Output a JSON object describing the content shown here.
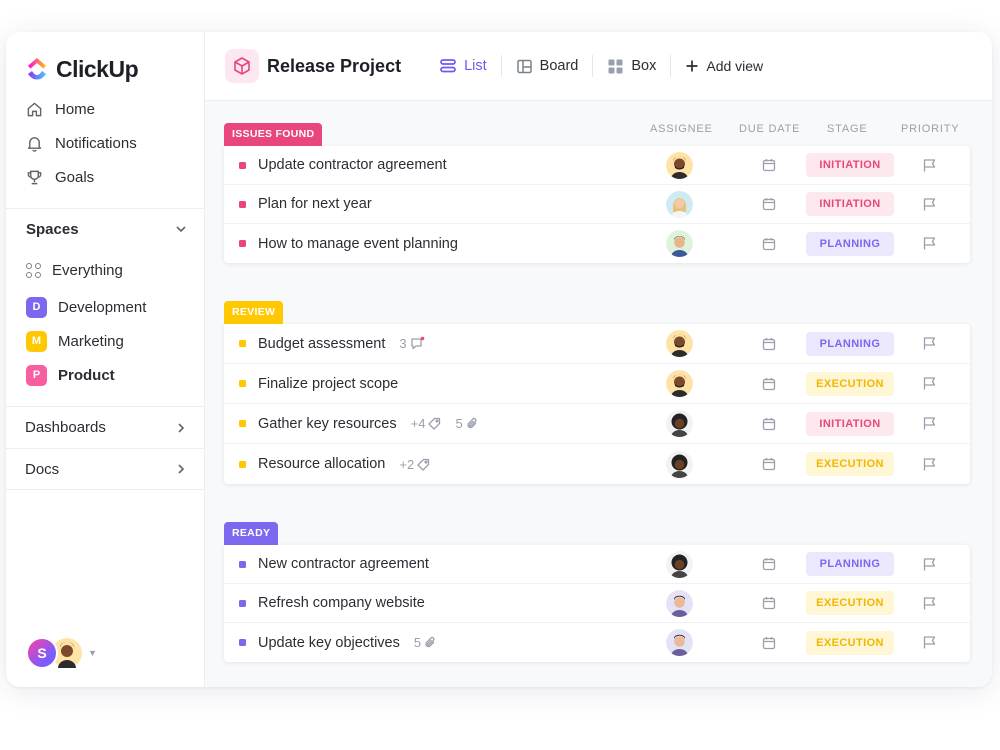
{
  "app": {
    "brand": "ClickUp"
  },
  "sidebar": {
    "nav": [
      {
        "label": "Home",
        "icon": "home-icon"
      },
      {
        "label": "Notifications",
        "icon": "bell-icon"
      },
      {
        "label": "Goals",
        "icon": "trophy-icon"
      }
    ],
    "spaces_label": "Spaces",
    "everything_label": "Everything",
    "spaces": [
      {
        "letter": "D",
        "label": "Development",
        "color": "#7b68ee"
      },
      {
        "letter": "M",
        "label": "Marketing",
        "color": "#ffc800"
      },
      {
        "letter": "P",
        "label": "Product",
        "color": "#f95ea0"
      }
    ],
    "dashboards_label": "Dashboards",
    "docs_label": "Docs",
    "user_initial": "S"
  },
  "header": {
    "project_title": "Release Project",
    "views": [
      {
        "label": "List",
        "icon": "list-icon",
        "active": true
      },
      {
        "label": "Board",
        "icon": "board-icon",
        "active": false
      },
      {
        "label": "Box",
        "icon": "box-icon",
        "active": false
      }
    ],
    "add_view_label": "Add view"
  },
  "columns": {
    "assignee": "ASSIGNEE",
    "due_date": "DUE DATE",
    "stage": "STAGE",
    "priority": "PRIORITY"
  },
  "stage_styles": {
    "INITIATION": {
      "bg": "#fde8ee",
      "fg": "#e8467c"
    },
    "PLANNING": {
      "bg": "#ebe8fd",
      "fg": "#7b68ee"
    },
    "EXECUTION": {
      "bg": "#fff6d6",
      "fg": "#f2b600"
    }
  },
  "groups": [
    {
      "label": "ISSUES FOUND",
      "color": "#e8467c",
      "tasks": [
        {
          "name": "Update contractor agreement",
          "assignee": "a",
          "stage": "INITIATION"
        },
        {
          "name": "Plan for next year",
          "assignee": "b",
          "stage": "INITIATION"
        },
        {
          "name": "How to manage event planning",
          "assignee": "c",
          "stage": "PLANNING"
        }
      ]
    },
    {
      "label": "REVIEW",
      "color": "#ffc800",
      "tasks": [
        {
          "name": "Budget assessment",
          "assignee": "a",
          "stage": "PLANNING",
          "comments": "3"
        },
        {
          "name": "Finalize project scope",
          "assignee": "a",
          "stage": "EXECUTION"
        },
        {
          "name": "Gather key resources",
          "assignee": "d",
          "stage": "INITIATION",
          "tags": "+4",
          "attachments": "5"
        },
        {
          "name": "Resource allocation",
          "assignee": "d",
          "stage": "EXECUTION",
          "tags": "+2"
        }
      ]
    },
    {
      "label": "READY",
      "color": "#7b68ee",
      "tasks": [
        {
          "name": "New contractor agreement",
          "assignee": "d",
          "stage": "PLANNING"
        },
        {
          "name": "Refresh company website",
          "assignee": "e",
          "stage": "EXECUTION"
        },
        {
          "name": "Update key objectives",
          "assignee": "e",
          "stage": "EXECUTION",
          "attachments": "5"
        }
      ]
    }
  ]
}
